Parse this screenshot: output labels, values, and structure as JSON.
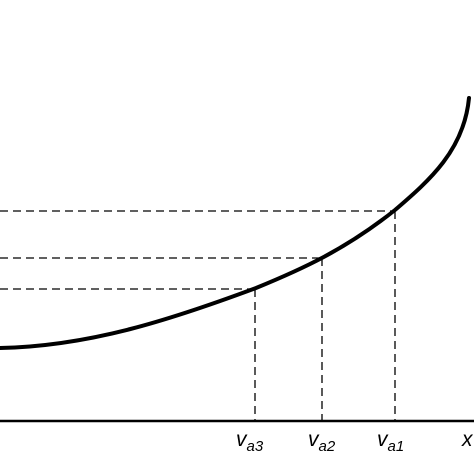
{
  "diagram": {
    "x_axis_end_label": "x",
    "markers": [
      {
        "main": "v",
        "sub": "a3"
      },
      {
        "main": "v",
        "sub": "a2"
      },
      {
        "main": "v",
        "sub": "a1"
      }
    ]
  },
  "colors": {
    "ink": "#000000",
    "background": "#ffffff"
  }
}
